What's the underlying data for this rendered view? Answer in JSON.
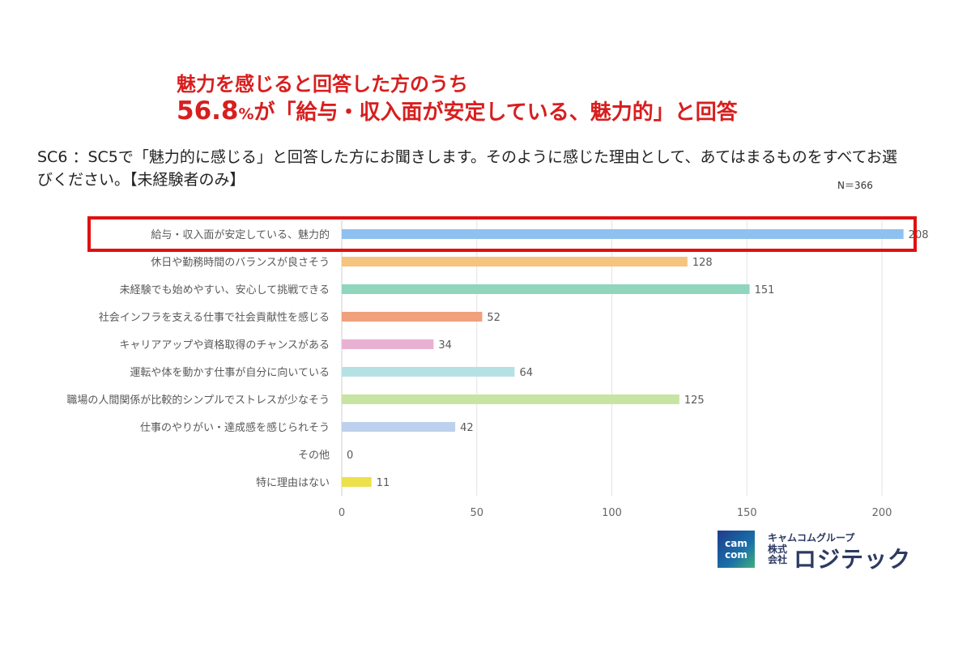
{
  "headline": {
    "line1": "魅力を感じると回答した方のうち",
    "line2_number": "56.8",
    "line2_percent": "%",
    "line2_rest": "が「給与・収入面が安定している、魅力的」と回答"
  },
  "question": "SC6 ：SC5で「魅力的に感じる」と回答した方にお聞きします。そのように感じた理由として、あてはまるものをすべてお選びください。【未経験者のみ】",
  "n_label": "N＝366",
  "logo": {
    "mark": "cam com",
    "group": "キャムコムグループ",
    "kk": "株式会社",
    "name": "ロジテック"
  },
  "chart_data": {
    "type": "bar",
    "orientation": "horizontal",
    "categories": [
      "給与・収入面が安定している、魅力的",
      "休日や勤務時間のバランスが良さそう",
      "未経験でも始めやすい、安心して挑戦できる",
      "社会インフラを支える仕事で社会貢献性を感じる",
      "キャリアアップや資格取得のチャンスがある",
      "運転や体を動かす仕事が自分に向いている",
      "職場の人間関係が比較的シンプルでストレスが少なそう",
      "仕事のやりがい・達成感を感じられそう",
      "その他",
      "特に理由はない"
    ],
    "values": [
      208,
      128,
      151,
      52,
      34,
      64,
      125,
      42,
      0,
      11
    ],
    "colors": [
      "#8ec1ef",
      "#f5c47e",
      "#8fd6bd",
      "#f0a07c",
      "#e9b1d1",
      "#b6e1e4",
      "#c8e4a2",
      "#bdd1ee",
      "#cccccc",
      "#ece14a"
    ],
    "xlim": [
      0,
      220
    ],
    "xticks": [
      0,
      50,
      100,
      150,
      200
    ],
    "grid": true,
    "highlight_index": 0,
    "highlight_color": "#e01010"
  }
}
